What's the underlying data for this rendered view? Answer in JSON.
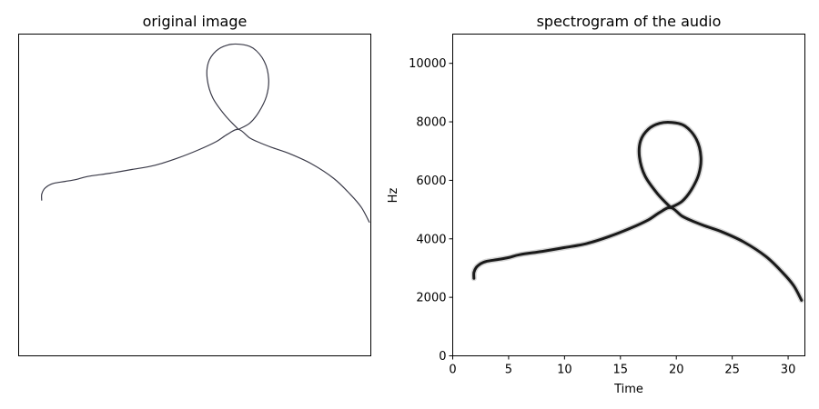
{
  "chart_data": [
    {
      "type": "line",
      "title": "original image",
      "xlabel": "",
      "ylabel": "",
      "axes": "off",
      "stroke_color": "#3a3a48",
      "grid": false,
      "legend": "none"
    },
    {
      "type": "line",
      "title": "spectrogram of the audio",
      "xlabel": "Time",
      "ylabel": "Hz",
      "xlim": [
        0,
        31.5
      ],
      "ylim": [
        0,
        11000
      ],
      "xticks": [
        0,
        5,
        10,
        15,
        20,
        25,
        30
      ],
      "yticks": [
        0,
        2000,
        4000,
        6000,
        8000,
        10000
      ],
      "stroke_color": "#1a1a1a",
      "grid": false,
      "legend": "none",
      "x": [
        1.9,
        1.9,
        2.1,
        2.5,
        3.0,
        4.0,
        5.0,
        6.0,
        8.0,
        10.0,
        12.0,
        14.0,
        16.0,
        17.5,
        18.5,
        19.5,
        20.5,
        21.5,
        22.5,
        24.0,
        26.0,
        28.0,
        29.5,
        30.5,
        31.2
      ],
      "y": [
        2650,
        2850,
        3020,
        3150,
        3230,
        3290,
        3360,
        3460,
        3570,
        3700,
        3840,
        4080,
        4380,
        4650,
        4900,
        5070,
        4780,
        4600,
        4450,
        4250,
        3900,
        3400,
        2850,
        2400,
        1900
      ],
      "loop": {
        "x": [
          19.5,
          18.3,
          17.2,
          16.7,
          16.8,
          17.5,
          18.5,
          19.6,
          20.8,
          21.8,
          22.2,
          22.0,
          21.3,
          20.5,
          19.5
        ],
        "y": [
          5070,
          5550,
          6150,
          6800,
          7350,
          7750,
          7950,
          7980,
          7850,
          7400,
          6800,
          6200,
          5650,
          5280,
          5070
        ]
      }
    }
  ]
}
